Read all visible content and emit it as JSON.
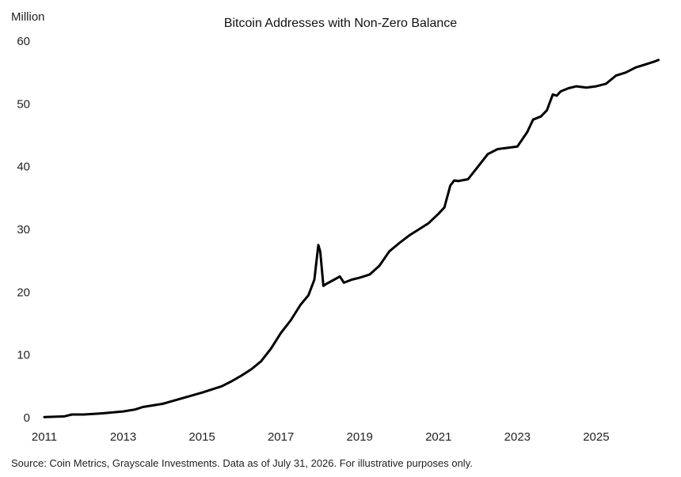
{
  "chart_data": {
    "type": "line",
    "title": "Bitcoin Addresses with Non-Zero Balance",
    "ylabel": "Million",
    "xlabel": "",
    "ylim": [
      0,
      60
    ],
    "yticks": [
      0,
      10,
      20,
      30,
      40,
      50,
      60
    ],
    "xlim": [
      2011,
      2026.75
    ],
    "xticks": [
      2011,
      2013,
      2015,
      2017,
      2019,
      2021,
      2023,
      2025
    ],
    "grid": false,
    "source": "Source: Coin Metrics, Grayscale Investments. Data as of July 31, 2026. For illustrative purposes only.",
    "series": [
      {
        "color": "#000000",
        "x": [
          2011.0,
          2011.5,
          2011.7,
          2012.0,
          2012.5,
          2013.0,
          2013.3,
          2013.5,
          2014.0,
          2014.5,
          2015.0,
          2015.5,
          2015.75,
          2016.0,
          2016.25,
          2016.5,
          2016.75,
          2017.0,
          2017.25,
          2017.5,
          2017.7,
          2017.85,
          2017.95,
          2018.0,
          2018.08,
          2018.15,
          2018.5,
          2018.6,
          2018.8,
          2019.0,
          2019.25,
          2019.5,
          2019.75,
          2020.0,
          2020.25,
          2020.5,
          2020.75,
          2021.0,
          2021.15,
          2021.3,
          2021.4,
          2021.5,
          2021.75,
          2022.0,
          2022.25,
          2022.5,
          2022.75,
          2023.0,
          2023.25,
          2023.4,
          2023.6,
          2023.75,
          2023.9,
          2024.0,
          2024.1,
          2024.3,
          2024.5,
          2024.75,
          2025.0,
          2025.25,
          2025.5,
          2025.75,
          2026.0,
          2026.25,
          2026.5,
          2026.58
        ],
        "values": [
          0.1,
          0.2,
          0.5,
          0.5,
          0.7,
          1.0,
          1.3,
          1.7,
          2.2,
          3.1,
          4.0,
          5.0,
          5.8,
          6.7,
          7.7,
          9.0,
          11.0,
          13.5,
          15.5,
          18.0,
          19.5,
          22.0,
          27.5,
          26.5,
          21.0,
          21.3,
          22.5,
          21.5,
          22.0,
          22.3,
          22.8,
          24.2,
          26.5,
          27.8,
          29.0,
          30.0,
          31.0,
          32.5,
          33.5,
          37.0,
          37.8,
          37.7,
          38.0,
          40.0,
          42.0,
          42.8,
          43.0,
          43.2,
          45.5,
          47.5,
          48.0,
          49.0,
          51.5,
          51.3,
          52.0,
          52.5,
          52.8,
          52.6,
          52.8,
          53.2,
          54.5,
          55.0,
          55.8,
          56.3,
          56.8,
          57.0
        ]
      }
    ]
  }
}
